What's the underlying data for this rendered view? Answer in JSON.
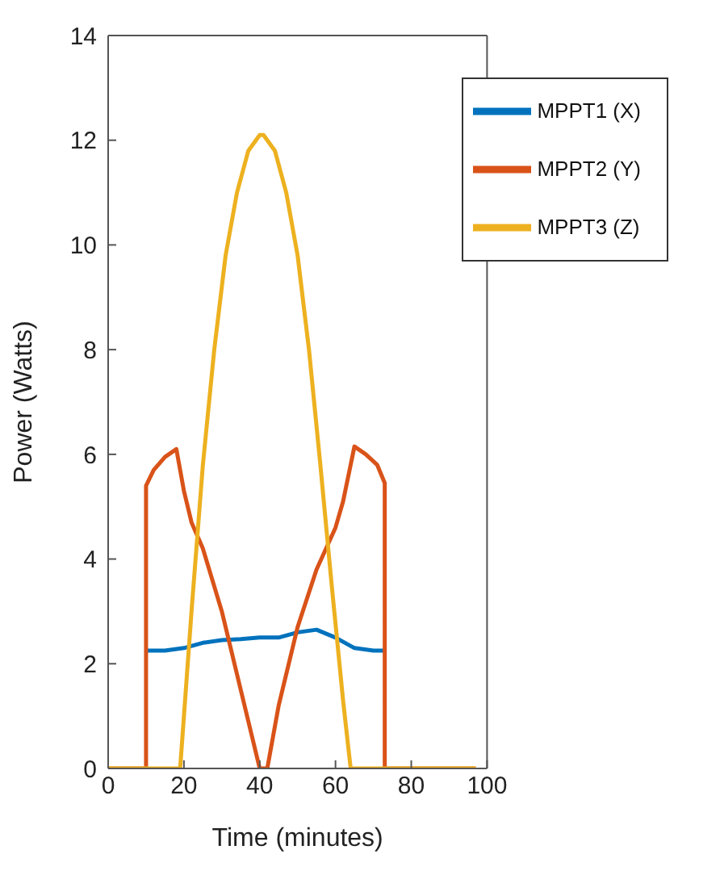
{
  "chart_data": {
    "type": "line",
    "xlabel": "Time (minutes)",
    "ylabel": "Power (Watts)",
    "xlim": [
      0,
      100
    ],
    "xticks": [
      0,
      20,
      40,
      60,
      80,
      100
    ],
    "ylim": [
      0,
      14
    ],
    "yticks": [
      0,
      2,
      4,
      6,
      8,
      10,
      12,
      14
    ],
    "grid": false,
    "legend": "top right",
    "marker": "none",
    "line_style": "solid",
    "series": [
      {
        "name": "MPPT1 (X)",
        "color": "#0072bd",
        "x": [
          10,
          15,
          20,
          25,
          30,
          35,
          40,
          45,
          50,
          55,
          60,
          65,
          70,
          73
        ],
        "values": [
          2.25,
          2.25,
          2.3,
          2.4,
          2.45,
          2.47,
          2.5,
          2.5,
          2.6,
          2.65,
          2.5,
          2.3,
          2.25,
          2.25
        ]
      },
      {
        "name": "MPPT2 (Y)",
        "color": "#d95319",
        "x": [
          0,
          10,
          10,
          12,
          15,
          18,
          20,
          22,
          25,
          30,
          35,
          40,
          42,
          45,
          50,
          55,
          60,
          62,
          65,
          68,
          71,
          73,
          73,
          97
        ],
        "values": [
          0,
          0,
          5.4,
          5.7,
          5.95,
          6.1,
          5.3,
          4.7,
          4.2,
          3.0,
          1.5,
          0,
          0,
          1.2,
          2.7,
          3.8,
          4.6,
          5.1,
          6.15,
          6.0,
          5.8,
          5.45,
          0,
          0
        ]
      },
      {
        "name": "MPPT3 (Z)",
        "color": "#edb120",
        "x": [
          0,
          19,
          22,
          25,
          28,
          31,
          34,
          37,
          40,
          41,
          44,
          47,
          50,
          53,
          56,
          59,
          62,
          64,
          97
        ],
        "values": [
          0,
          0,
          3,
          5.8,
          8,
          9.8,
          11,
          11.8,
          12.1,
          12.1,
          11.8,
          11,
          9.8,
          8,
          5.8,
          3.5,
          1.3,
          0,
          0
        ]
      }
    ]
  }
}
